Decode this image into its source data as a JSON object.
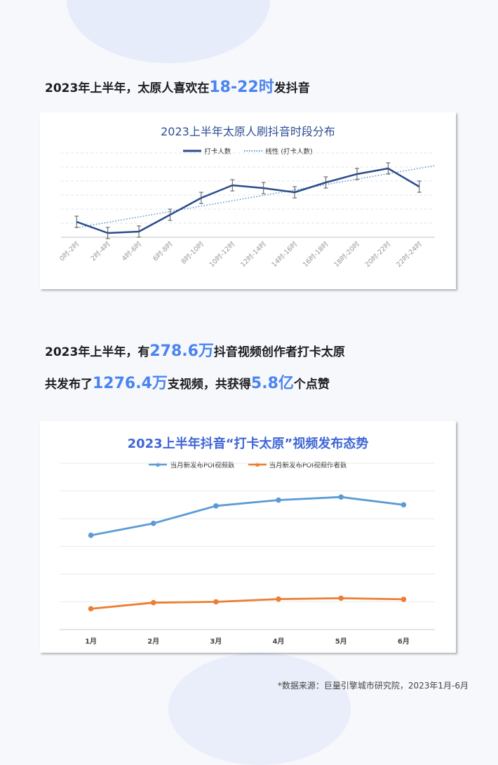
{
  "heading1": {
    "prefix": "2023年上半年，太原人喜欢在",
    "highlight": "18-22时",
    "suffix": "发抖音"
  },
  "heading2": {
    "prefix": "2023年上半年，有",
    "highlight": "278.6万",
    "suffix": "抖音视频创作者打卡太原"
  },
  "heading3": {
    "p1": "共发布了",
    "h1": "1276.4万",
    "p2": "支视频，共获得",
    "h2": "5.8亿",
    "p3": "个点赞"
  },
  "footer": "*数据来源：巨量引擎城市研究院，2023年1月-6月",
  "colors": {
    "accent": "#4a84f0",
    "line1": "#2a4b8d",
    "line2_blue": "#5b9bd5",
    "line2_orange": "#ed7d31"
  },
  "chart_data": [
    {
      "type": "line",
      "title": "2023上半年太原人刷抖音时段分布",
      "categories": [
        "0时-2时",
        "2时-4时",
        "4时-6时",
        "6时-8时",
        "8时-10时",
        "10时-12时",
        "12时-14时",
        "14时-16时",
        "16时-18时",
        "18时-20时",
        "20时-22时",
        "22时-24时"
      ],
      "series": [
        {
          "name": "打卡人数",
          "values": [
            1.1,
            0.3,
            0.4,
            1.6,
            2.8,
            3.7,
            3.5,
            3.2,
            3.9,
            4.5,
            4.9,
            3.6
          ],
          "error_bars": true
        }
      ],
      "trendline": {
        "name": "线性 (打卡人数)",
        "type": "linear"
      },
      "ylim": [
        0,
        6
      ],
      "grid": true,
      "legend": "top"
    },
    {
      "type": "line",
      "title": "2023上半年抖音“打卡太原”视频发布态势",
      "categories": [
        "1月",
        "2月",
        "3月",
        "4月",
        "5月",
        "6月"
      ],
      "series": [
        {
          "name": "当月新发布POI视频数",
          "values": [
            3.4,
            3.83,
            4.46,
            4.67,
            4.78,
            4.5
          ]
        },
        {
          "name": "当月新发布POI视频作者数",
          "values": [
            0.75,
            0.97,
            1.0,
            1.1,
            1.13,
            1.09
          ]
        }
      ],
      "ylim": [
        0,
        6
      ],
      "grid": true,
      "legend": "top"
    }
  ]
}
